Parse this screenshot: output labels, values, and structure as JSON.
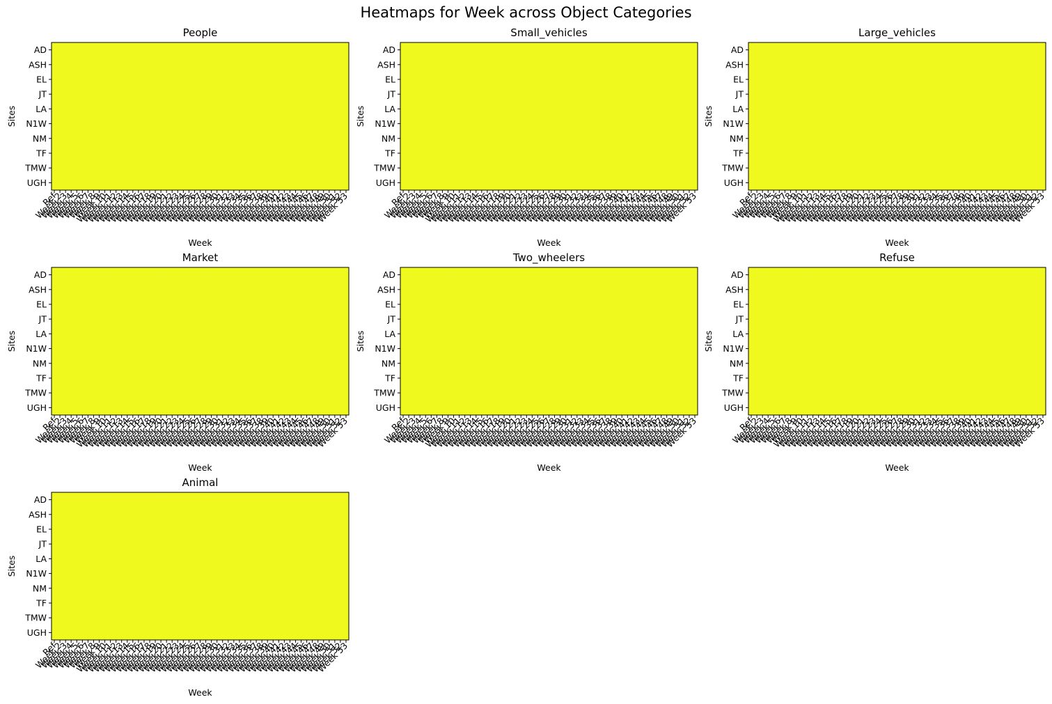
{
  "figure": {
    "title": "Heatmaps for Week across Object Categories"
  },
  "chart_data": [
    {
      "type": "heatmap",
      "title": "People",
      "xlabel": "Week",
      "ylabel": "Sites"
    },
    {
      "type": "heatmap",
      "title": "Small_vehicles",
      "xlabel": "Week",
      "ylabel": "Sites"
    },
    {
      "type": "heatmap",
      "title": "Large_vehicles",
      "xlabel": "Week",
      "ylabel": "Sites"
    },
    {
      "type": "heatmap",
      "title": "Market",
      "xlabel": "Week",
      "ylabel": "Sites"
    },
    {
      "type": "heatmap",
      "title": "Two_wheelers",
      "xlabel": "Week",
      "ylabel": "Sites"
    },
    {
      "type": "heatmap",
      "title": "Refuse",
      "xlabel": "Week",
      "ylabel": "Sites"
    },
    {
      "type": "heatmap",
      "title": "Animal",
      "xlabel": "Week",
      "ylabel": "Sites"
    }
  ],
  "shared": {
    "y_categories": [
      "AD",
      "ASH",
      "EL",
      "JT",
      "LA",
      "N1W",
      "NM",
      "TF",
      "TMW",
      "UGH"
    ],
    "x_categories": [
      "Ref",
      "Week 2",
      "Week 3",
      "Week 4",
      "Week 5",
      "Week 6",
      "Week 7",
      "Week 8",
      "Week 9",
      "Week 10",
      "Week 11",
      "Week 12",
      "Week 13",
      "Week 14",
      "Week 15",
      "Week 16",
      "Week 17",
      "Week 18",
      "Week 19",
      "Week 20",
      "Week 21",
      "Week 22",
      "Week 23",
      "Week 24",
      "Week 25",
      "Week 26",
      "Week 27",
      "Week 28",
      "Week 29",
      "Week 30",
      "Week 31",
      "Week 32",
      "Week 33",
      "Week 34",
      "Week 35",
      "Week 36",
      "Week 37",
      "Week 38",
      "Week 39",
      "Week 40",
      "Week 41",
      "Week 42",
      "Week 43",
      "Week 44",
      "Week 45",
      "Week 46",
      "Week 47",
      "Week 48",
      "Week 49",
      "Week 50",
      "Week 51",
      "Week 52",
      "Week 53"
    ],
    "cell_color": "#f0f91e",
    "grid": false
  }
}
